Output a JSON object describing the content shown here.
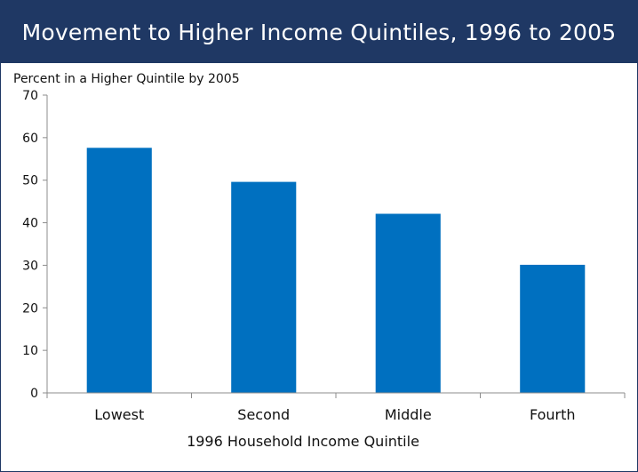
{
  "chart_data": {
    "type": "bar",
    "title": "Movement to Higher Income Quintiles, 1996 to 2005",
    "ylabel": "Percent in a Higher Quintile by 2005",
    "xlabel": "1996 Household Income Quintile",
    "categories": [
      "Lowest",
      "Second",
      "Middle",
      "Fourth"
    ],
    "values": [
      57.6,
      49.6,
      42.1,
      30.1
    ],
    "ylim": [
      0,
      70
    ],
    "yticks": [
      0,
      10,
      20,
      30,
      40,
      50,
      60,
      70
    ],
    "grid": false,
    "bar_color": "#0070c0"
  },
  "colors": {
    "title_bar": "#1f3864",
    "title_text": "#ffffff"
  }
}
